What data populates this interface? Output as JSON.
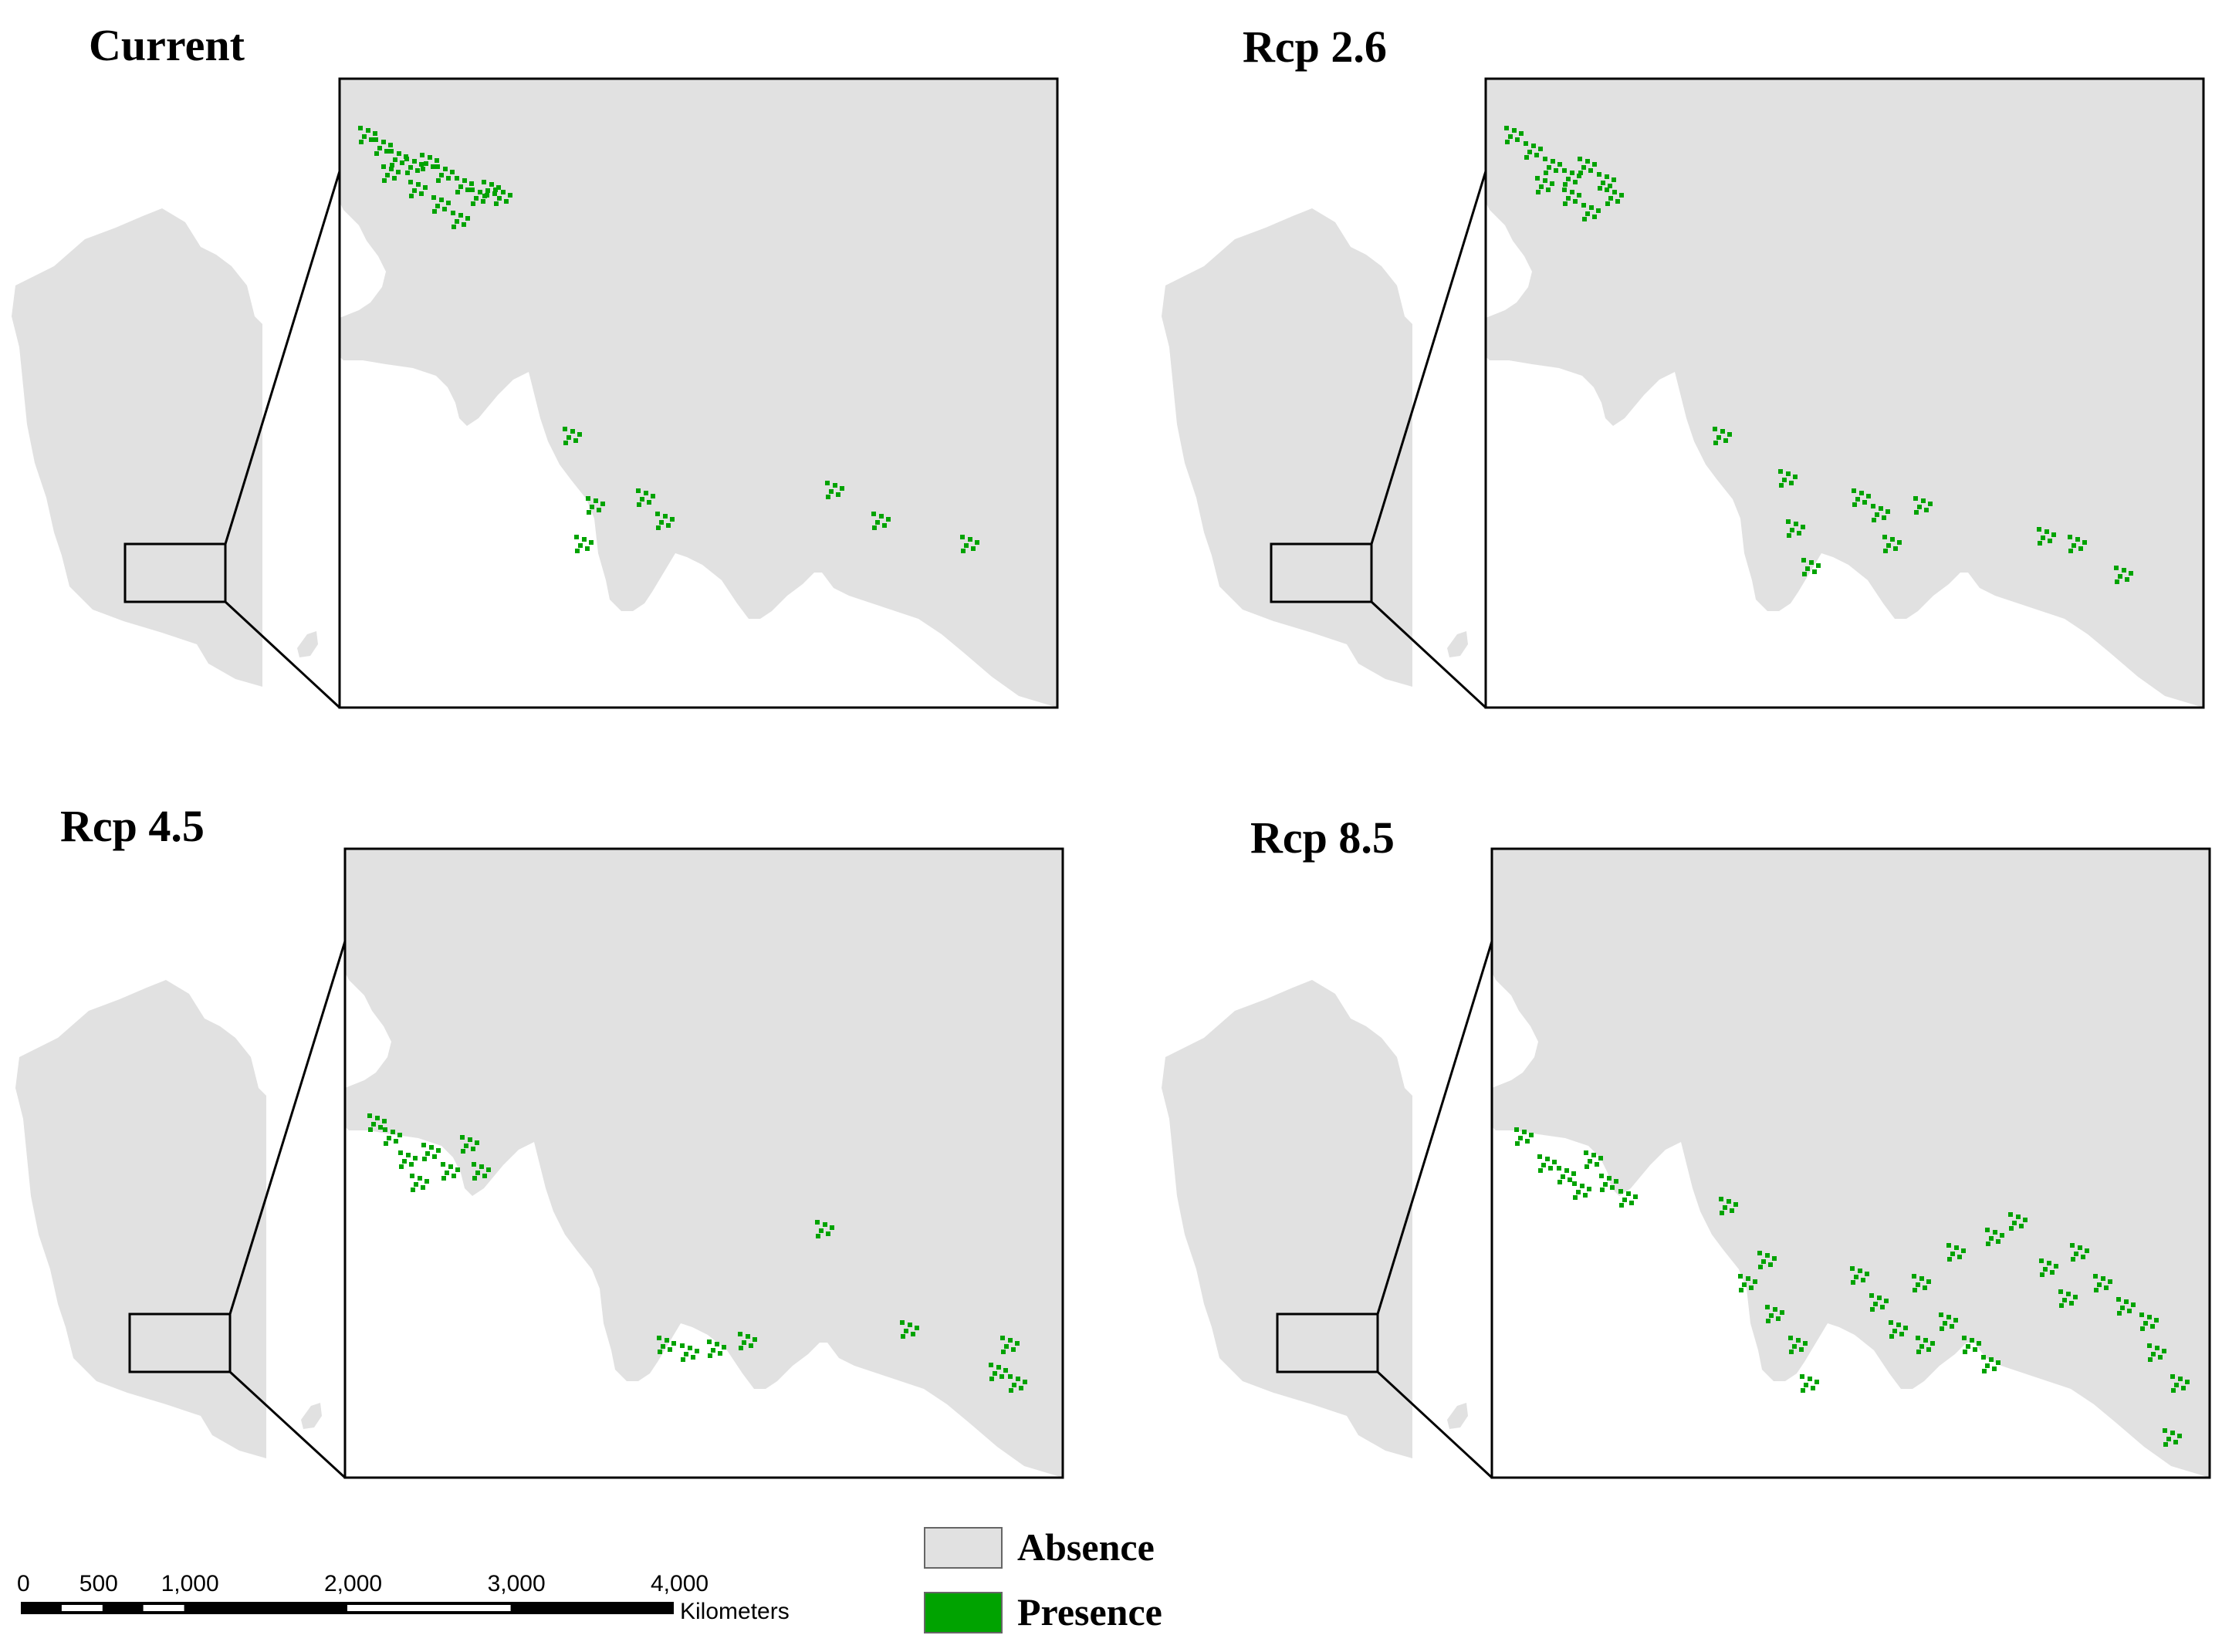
{
  "colors": {
    "absence": "#e1e1e1",
    "presence": "#00a300",
    "frame": "#000000",
    "background": "#ffffff"
  },
  "panels": [
    {
      "title": "Current"
    },
    {
      "title": "Rcp 2.6"
    },
    {
      "title": "Rcp 4.5"
    },
    {
      "title": "Rcp 8.5"
    }
  ],
  "legend": [
    {
      "label": "Absence",
      "color": "#e1e1e1"
    },
    {
      "label": "Presence",
      "color": "#00a300"
    }
  ],
  "scale_bar": {
    "ticks": [
      "0",
      "500",
      "1,000",
      "2,000",
      "3,000",
      "4,000"
    ],
    "unit": "Kilometers"
  }
}
